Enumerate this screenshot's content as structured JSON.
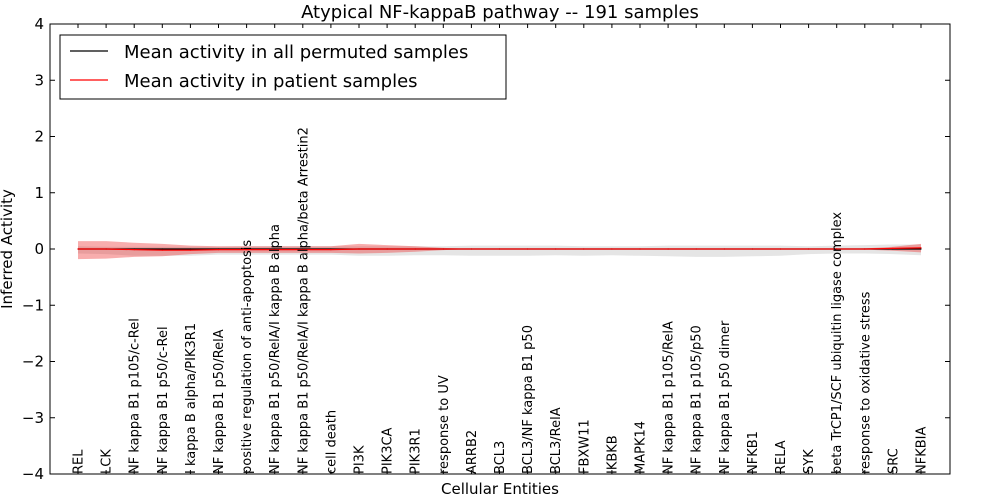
{
  "chart_data": {
    "type": "line",
    "title": "Atypical NF-kappaB pathway -- 191 samples",
    "xlabel": "Cellular Entities",
    "ylabel": "Inferred Activity",
    "ylim": [
      -4,
      4
    ],
    "yticks": [
      -4,
      -3,
      -2,
      -1,
      0,
      1,
      2,
      3,
      4
    ],
    "ytick_labels": [
      "−4",
      "−3",
      "−2",
      "−1",
      "0",
      "1",
      "2",
      "3",
      "4"
    ],
    "legend_position": "top-left",
    "categories": [
      "REL",
      "LCK",
      "NF kappa B1 p105/c-Rel",
      "NF kappa B1 p50/c-Rel",
      "I kappa B alpha/PIK3R1",
      "NF kappa B1 p50/RelA",
      "positive regulation of anti-apoptosis",
      "NF kappa B1 p50/RelA/I kappa B alpha",
      "NF kappa B1 p50/RelA/I kappa B alpha/beta Arrestin2",
      "cell death",
      "PI3K",
      "PIK3CA",
      "PIK3R1",
      "response to UV",
      "ARRB2",
      "BCL3",
      "BCL3/NF kappa B1 p50",
      "BCL3/RelA",
      "FBXW11",
      "IKBKB",
      "MAPK14",
      "NF kappa B1 p105/RelA",
      "NF kappa B1 p105/p50",
      "NF kappa B1 p50 dimer",
      "NFKB1",
      "RELA",
      "SYK",
      "beta TrCP1/SCF ubiquitin ligase complex",
      "response to oxidative stress",
      "SRC",
      "NFKBIA"
    ],
    "series": [
      {
        "name": "Mean activity in all permuted samples",
        "color": "#000000",
        "values": [
          0,
          0,
          0,
          0,
          0,
          0,
          0,
          0,
          0,
          0,
          0,
          0,
          0,
          0,
          0,
          0,
          0,
          0,
          0,
          0,
          0,
          0,
          0,
          0,
          0,
          0,
          0,
          0,
          0,
          0,
          0
        ],
        "band_upper": [
          0.05,
          0.04,
          0.04,
          0.04,
          0.04,
          0.04,
          0.05,
          0.05,
          0.05,
          0.05,
          0.05,
          0.05,
          0.05,
          0.05,
          0.06,
          0.06,
          0.06,
          0.06,
          0.05,
          0.05,
          0.05,
          0.06,
          0.06,
          0.06,
          0.06,
          0.06,
          0.05,
          0.06,
          0.07,
          0.08,
          0.08
        ],
        "band_lower": [
          -0.08,
          -0.09,
          -0.12,
          -0.12,
          -0.12,
          -0.1,
          -0.1,
          -0.1,
          -0.1,
          -0.1,
          -0.12,
          -0.12,
          -0.11,
          -0.11,
          -0.12,
          -0.12,
          -0.12,
          -0.11,
          -0.12,
          -0.11,
          -0.12,
          -0.13,
          -0.14,
          -0.14,
          -0.13,
          -0.12,
          -0.09,
          -0.08,
          -0.08,
          -0.09,
          -0.11
        ]
      },
      {
        "name": "Mean activity in patient samples",
        "color": "#ff0000",
        "values": [
          0,
          0,
          -0.01,
          -0.02,
          -0.02,
          -0.01,
          -0.01,
          -0.01,
          -0.01,
          -0.01,
          0,
          0,
          0,
          0,
          0,
          0,
          0,
          0,
          0,
          0,
          0,
          0,
          0,
          0,
          0,
          0,
          0,
          0,
          0,
          0.01,
          0.02
        ],
        "band_upper": [
          0.14,
          0.14,
          0.11,
          0.09,
          0.06,
          0.05,
          0.05,
          0.05,
          0.05,
          0.05,
          0.09,
          0.07,
          0.05,
          0.02,
          0,
          0,
          0,
          0,
          0,
          0,
          0,
          0,
          0,
          0,
          0,
          0,
          0,
          0,
          0.01,
          0.04,
          0.09
        ],
        "band_lower": [
          -0.18,
          -0.17,
          -0.14,
          -0.13,
          -0.09,
          -0.07,
          -0.07,
          -0.07,
          -0.07,
          -0.07,
          -0.08,
          -0.07,
          -0.05,
          -0.02,
          0,
          0,
          0,
          0,
          0,
          0,
          0,
          0,
          0,
          0,
          0,
          0,
          0,
          0,
          -0.01,
          -0.03,
          -0.06
        ]
      }
    ]
  }
}
